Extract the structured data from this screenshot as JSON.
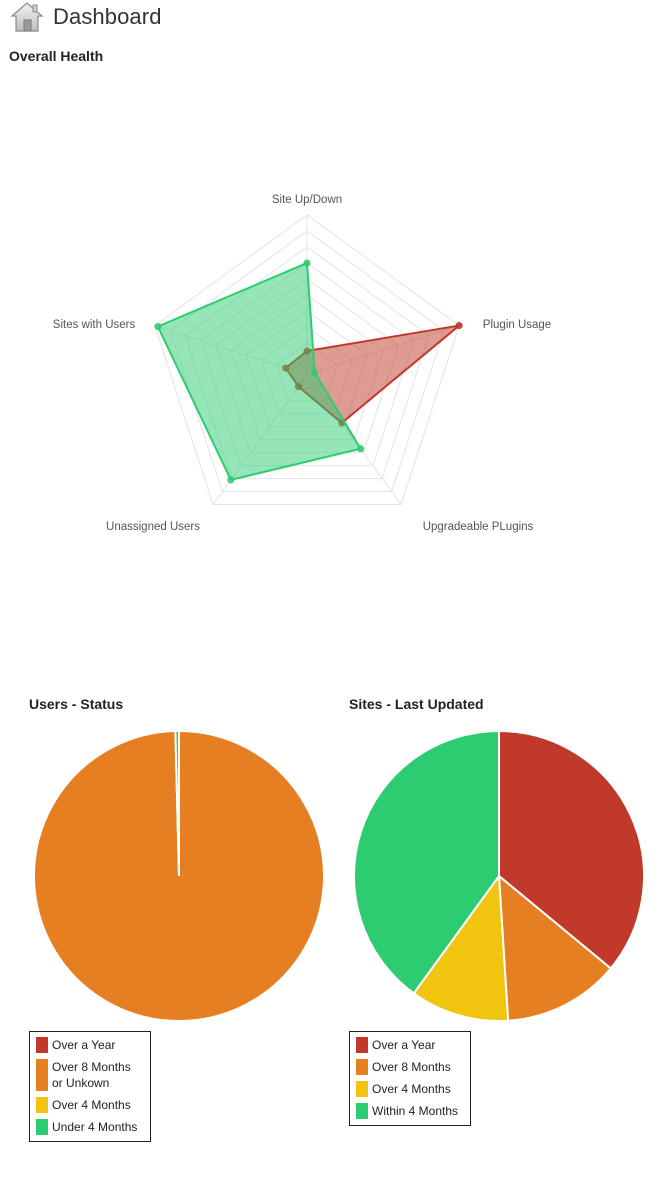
{
  "header": {
    "title": "Dashboard",
    "icon": "home-icon"
  },
  "colors": {
    "red": "#c0392b",
    "orange": "#e67e22",
    "yellow": "#f1c40f",
    "green": "#2ecc71"
  },
  "sections": {
    "health_title": "Overall Health",
    "users_title": "Users - Status",
    "sites_title": "Sites - Last Updated"
  },
  "chart_data": [
    {
      "type": "radar",
      "title": "Overall Health",
      "axes": [
        "Site Up/Down",
        "Plugin Usage",
        "Upgradeable PLugins",
        "Unassigned Users",
        "Sites with Users"
      ],
      "range": [
        0,
        100
      ],
      "grid": true,
      "series": [
        {
          "color": "#c0392b",
          "values": [
            15,
            100,
            37,
            9,
            14
          ]
        },
        {
          "color": "#2ecc71",
          "values": [
            70,
            5,
            57,
            81,
            98
          ]
        }
      ]
    },
    {
      "type": "pie",
      "title": "Users - Status",
      "categories": [
        "Over a Year",
        "Over 8 Months or Unkown",
        "Over 4 Months",
        "Under 4 Months"
      ],
      "values": [
        0,
        99.6,
        0,
        0.4
      ],
      "colors": [
        "#c0392b",
        "#e67e22",
        "#f1c40f",
        "#2ecc71"
      ],
      "legend": "bottom-left"
    },
    {
      "type": "pie",
      "title": "Sites - Last Updated",
      "categories": [
        "Over a Year",
        "Over 8 Months",
        "Over 4 Months",
        "Within 4 Months"
      ],
      "values": [
        36,
        13,
        11,
        40
      ],
      "colors": [
        "#c0392b",
        "#e67e22",
        "#f1c40f",
        "#2ecc71"
      ],
      "legend": "bottom-left"
    }
  ]
}
